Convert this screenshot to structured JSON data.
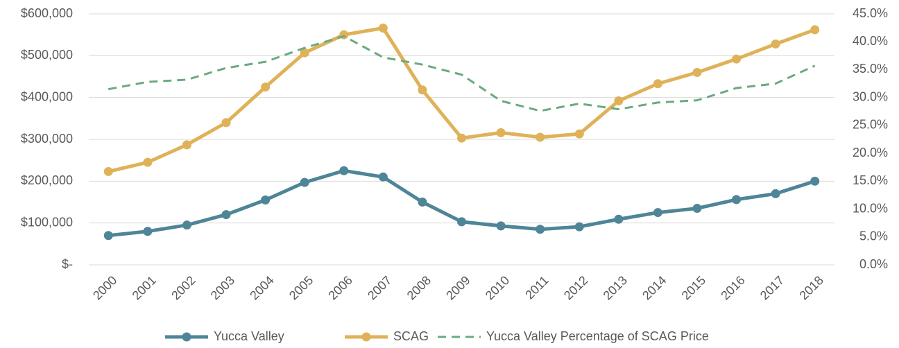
{
  "chart_data": {
    "type": "line",
    "categories": [
      "2000",
      "2001",
      "2002",
      "2003",
      "2004",
      "2005",
      "2006",
      "2007",
      "2008",
      "2009",
      "2010",
      "2011",
      "2012",
      "2013",
      "2014",
      "2015",
      "2016",
      "2017",
      "2018"
    ],
    "series": [
      {
        "name": "Yucca Valley",
        "color": "#4e8597",
        "marker": true,
        "values": [
          70000,
          80000,
          95000,
          120000,
          155000,
          197000,
          225000,
          210000,
          150000,
          103000,
          93000,
          85000,
          91000,
          109000,
          125000,
          135000,
          156000,
          170000,
          200000
        ]
      },
      {
        "name": "SCAG",
        "color": "#dfb259",
        "marker": true,
        "values": [
          223000,
          245000,
          287000,
          340000,
          425000,
          507000,
          550000,
          566000,
          418000,
          303000,
          316000,
          305000,
          313000,
          392000,
          433000,
          460000,
          492000,
          528000,
          562000
        ]
      },
      {
        "name": "Yucca Valley Percentage of SCAG Price",
        "color": "#6aaa7e",
        "dashed": true,
        "axis": "y2",
        "values": [
          31.5,
          32.8,
          33.2,
          35.3,
          36.4,
          38.9,
          41.0,
          37.2,
          35.9,
          34.1,
          29.4,
          27.6,
          28.9,
          27.9,
          29.1,
          29.5,
          31.7,
          32.5,
          35.7
        ]
      }
    ],
    "ylim": [
      0,
      600000
    ],
    "yticks": [
      {
        "value": 0,
        "label": "$-"
      },
      {
        "value": 100000,
        "label": "$100,000"
      },
      {
        "value": 200000,
        "label": "$200,000"
      },
      {
        "value": 300000,
        "label": "$300,000"
      },
      {
        "value": 400000,
        "label": "$400,000"
      },
      {
        "value": 500000,
        "label": "$500,000"
      },
      {
        "value": 600000,
        "label": "$600,000"
      }
    ],
    "y2lim": [
      0,
      45
    ],
    "y2ticks": [
      {
        "value": 0,
        "label": "0.0%"
      },
      {
        "value": 5,
        "label": "5.0%"
      },
      {
        "value": 10,
        "label": "10.0%"
      },
      {
        "value": 15,
        "label": "15.0%"
      },
      {
        "value": 20,
        "label": "20.0%"
      },
      {
        "value": 25,
        "label": "25.0%"
      },
      {
        "value": 30,
        "label": "30.0%"
      },
      {
        "value": 35,
        "label": "35.0%"
      },
      {
        "value": 40,
        "label": "40.0%"
      },
      {
        "value": 45,
        "label": "45.0%"
      }
    ],
    "grid": true,
    "legend": "bottom"
  }
}
